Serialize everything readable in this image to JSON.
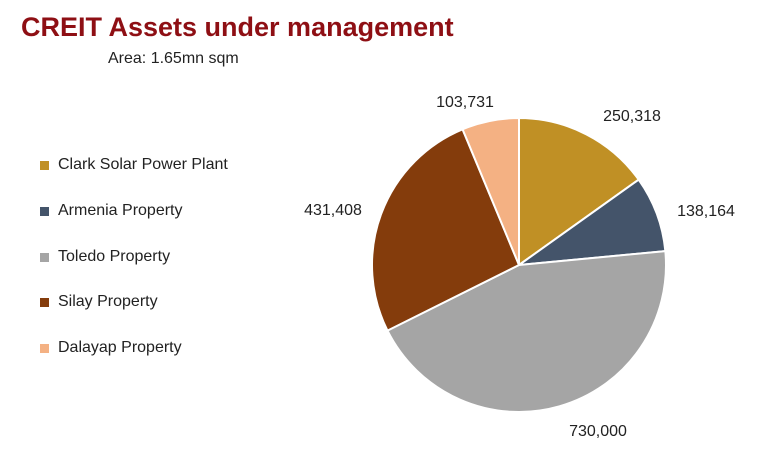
{
  "chart_data": {
    "type": "pie",
    "title": "CREIT Assets under management",
    "subtitle": "Area: 1.65mn sqm",
    "categories": [
      "Clark Solar Power Plant",
      "Armenia Property",
      "Toledo Property",
      "Silay Property",
      "Dalayap Property"
    ],
    "values": [
      250318,
      138164,
      730000,
      431408,
      103731
    ],
    "data_labels": [
      "250,318",
      "138,164",
      "730,000",
      "431,408",
      "103,731"
    ],
    "colors": [
      "#C09025",
      "#44546A",
      "#A5A5A5",
      "#843C0C",
      "#F4B183"
    ],
    "start_angle": "12 o'clock, clockwise",
    "legend_placement": "left"
  }
}
